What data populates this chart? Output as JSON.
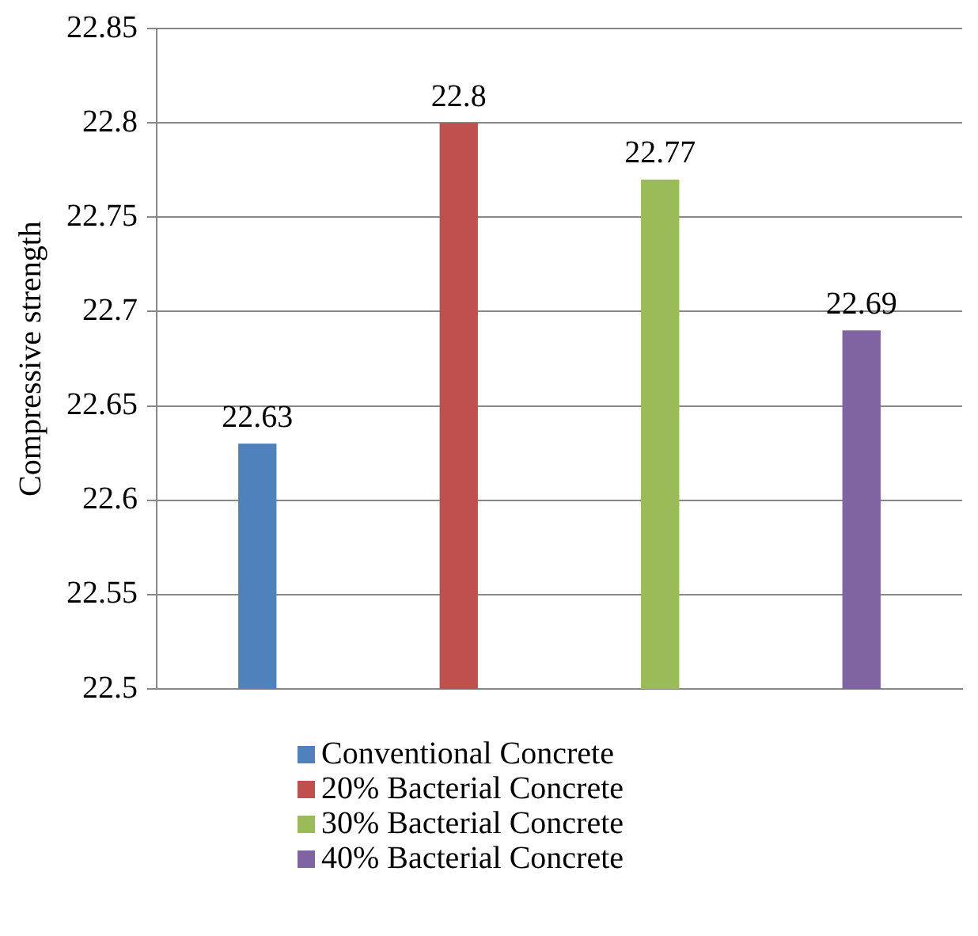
{
  "chart_data": {
    "type": "bar",
    "ylabel": "Compressive strength",
    "categories": [
      null
    ],
    "series": [
      {
        "name": "Conventional Concrete",
        "color": "#4f81bd",
        "values": [
          22.63
        ]
      },
      {
        "name": "20% Bacterial Concrete",
        "color": "#c0504d",
        "values": [
          22.8
        ]
      },
      {
        "name": "30% Bacterial Concrete",
        "color": "#9bbb59",
        "values": [
          22.77
        ]
      },
      {
        "name": "40% Bacterial Concrete",
        "color": "#8064a2",
        "values": [
          22.69
        ]
      }
    ],
    "ylim": [
      22.5,
      22.85
    ],
    "yticks": [
      22.5,
      22.55,
      22.6,
      22.65,
      22.7,
      22.75,
      22.8,
      22.85
    ],
    "grid": "y",
    "legend": "bottom",
    "data_labels": true
  }
}
